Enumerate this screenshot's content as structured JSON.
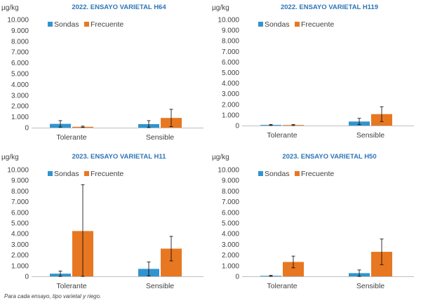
{
  "chart_data": [
    {
      "type": "bar",
      "title": "2022. ENSAYO VARIETAL H64",
      "ylabel": "µg/kg",
      "categories": [
        "Tolerante",
        "Sensible"
      ],
      "ylim": [
        0,
        10000
      ],
      "yticks": [
        "0",
        "1.000",
        "2.000",
        "3.000",
        "4.000",
        "5.000",
        "6.000",
        "7.000",
        "8.000",
        "9.000",
        "10.000"
      ],
      "series": [
        {
          "name": "Sondas",
          "values": [
            350,
            330
          ],
          "errors": [
            300,
            320
          ]
        },
        {
          "name": "Frecuente",
          "values": [
            80,
            900
          ],
          "errors": [
            60,
            800
          ]
        }
      ],
      "legend": "top-left"
    },
    {
      "type": "bar",
      "title": "2022. ENSAYO VARIETAL H119",
      "ylabel": "µg/kg",
      "categories": [
        "Tolerante",
        "Sensible"
      ],
      "ylim": [
        0,
        10000
      ],
      "yticks": [
        "0",
        "1.000",
        "2.000",
        "3.000",
        "4.000",
        "5.000",
        "6.000",
        "7.000",
        "8.000",
        "9.000",
        "10.000"
      ],
      "series": [
        {
          "name": "Sondas",
          "values": [
            60,
            380
          ],
          "errors": [
            50,
            300
          ]
        },
        {
          "name": "Frecuente",
          "values": [
            50,
            1080
          ],
          "errors": [
            40,
            700
          ]
        }
      ],
      "legend": "top-left"
    },
    {
      "type": "bar",
      "title": "2023. ENSAYO VARIETAL H11",
      "ylabel": "µg/kg",
      "categories": [
        "Tolerante",
        "Sensible"
      ],
      "ylim": [
        0,
        10000
      ],
      "yticks": [
        "0",
        "1.000",
        "2.000",
        "3.000",
        "4.000",
        "5.000",
        "6.000",
        "7.000",
        "8.000",
        "9.000",
        "10.000"
      ],
      "series": [
        {
          "name": "Sondas",
          "values": [
            250,
            700
          ],
          "errors": [
            250,
            650
          ]
        },
        {
          "name": "Frecuente",
          "values": [
            4250,
            2600
          ],
          "errors": [
            4350,
            1150
          ]
        }
      ],
      "legend": "top-left"
    },
    {
      "type": "bar",
      "title": "2023. ENSAYO VARIETAL H50",
      "ylabel": "µg/kg",
      "categories": [
        "Tolerante",
        "Sensible"
      ],
      "ylim": [
        0,
        10000
      ],
      "yticks": [
        "0",
        "1.000",
        "2.000",
        "3.000",
        "4.000",
        "5.000",
        "6.000",
        "7.000",
        "8.000",
        "9.000",
        "10.000"
      ],
      "series": [
        {
          "name": "Sondas",
          "values": [
            50,
            300
          ],
          "errors": [
            50,
            300
          ]
        },
        {
          "name": "Frecuente",
          "values": [
            1350,
            2300
          ],
          "errors": [
            550,
            1200
          ]
        }
      ],
      "legend": "top-left"
    }
  ],
  "colors": {
    "Sondas": "#3194cf",
    "Frecuente": "#e87722",
    "axis": "#bfbfbf",
    "title": "#2e75b6"
  },
  "footnote": "Para cada ensayo, tipo varietal y riego."
}
